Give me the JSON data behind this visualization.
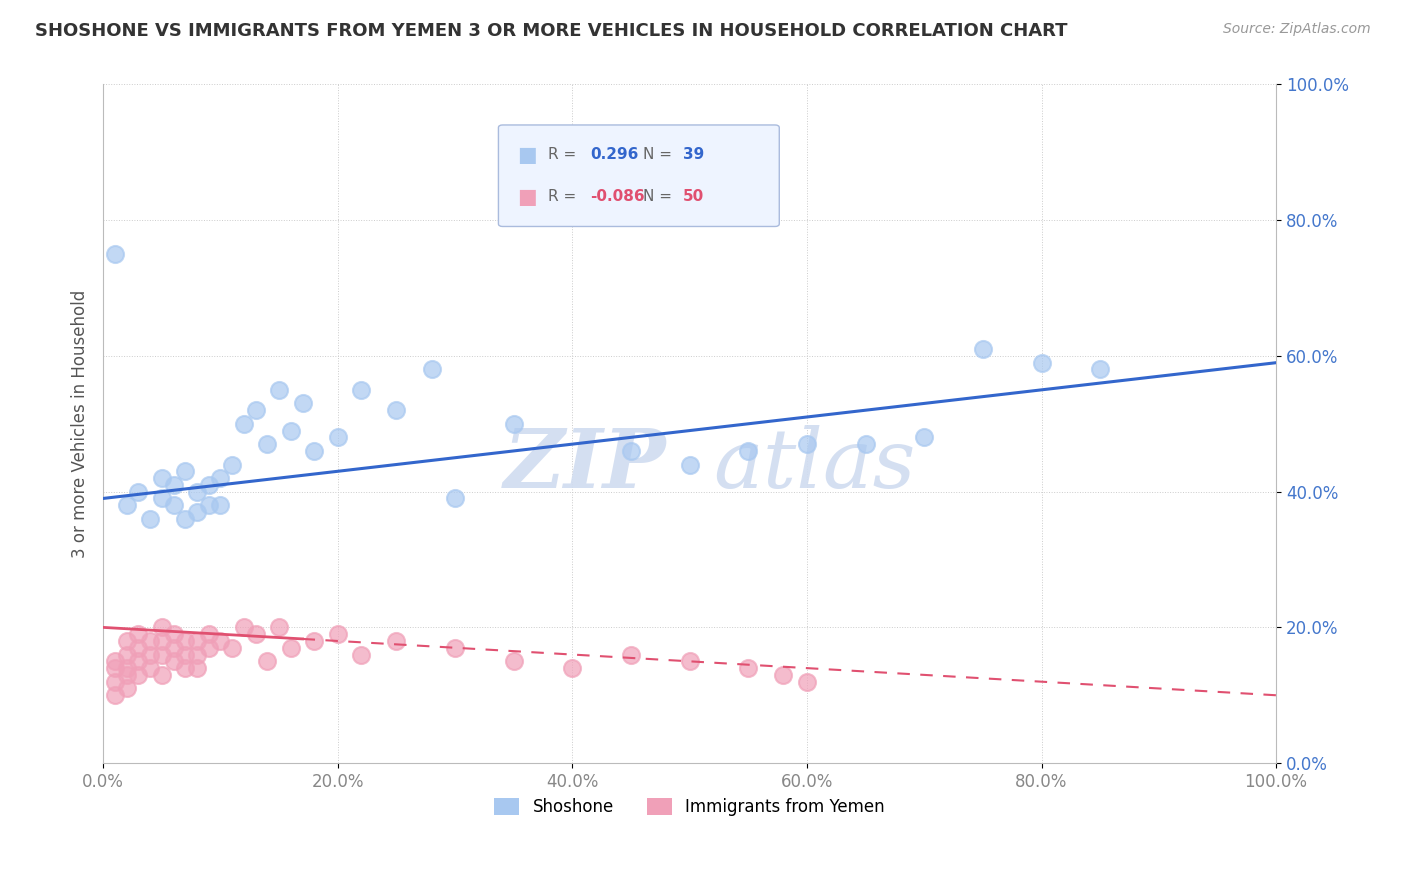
{
  "title": "SHOSHONE VS IMMIGRANTS FROM YEMEN 3 OR MORE VEHICLES IN HOUSEHOLD CORRELATION CHART",
  "source": "Source: ZipAtlas.com",
  "ylabel": "3 or more Vehicles in Household",
  "xlim": [
    0,
    100
  ],
  "ylim": [
    0,
    100
  ],
  "xticks": [
    0,
    20,
    40,
    60,
    80,
    100
  ],
  "yticks": [
    0,
    20,
    40,
    60,
    80,
    100
  ],
  "xtick_labels": [
    "0.0%",
    "20.0%",
    "40.0%",
    "60.0%",
    "80.0%",
    "100.0%"
  ],
  "ytick_labels": [
    "0.0%",
    "20.0%",
    "40.0%",
    "60.0%",
    "80.0%",
    "100.0%"
  ],
  "blue_R": "0.296",
  "blue_N": "39",
  "pink_R": "-0.086",
  "pink_N": "50",
  "blue_color": "#A8C8F0",
  "pink_color": "#F0A0B8",
  "blue_line_color": "#3366CC",
  "pink_line_color": "#E05070",
  "watermark_zip": "ZIP",
  "watermark_atlas": "atlas",
  "legend_blue_label": "Shoshone",
  "legend_pink_label": "Immigrants from Yemen",
  "blue_scatter_x": [
    1,
    2,
    3,
    4,
    5,
    5,
    6,
    6,
    7,
    7,
    8,
    8,
    9,
    9,
    10,
    10,
    11,
    12,
    13,
    14,
    15,
    16,
    17,
    18,
    20,
    22,
    25,
    28,
    30,
    35,
    45,
    50,
    55,
    60,
    65,
    70,
    75,
    80,
    85
  ],
  "blue_scatter_y": [
    75,
    38,
    40,
    36,
    39,
    42,
    38,
    41,
    36,
    43,
    37,
    40,
    38,
    41,
    38,
    42,
    44,
    50,
    52,
    47,
    55,
    49,
    53,
    46,
    48,
    55,
    52,
    58,
    39,
    50,
    46,
    44,
    46,
    47,
    47,
    48,
    61,
    59,
    58
  ],
  "pink_scatter_x": [
    1,
    1,
    1,
    1,
    2,
    2,
    2,
    2,
    2,
    3,
    3,
    3,
    3,
    4,
    4,
    4,
    5,
    5,
    5,
    5,
    6,
    6,
    6,
    7,
    7,
    7,
    8,
    8,
    8,
    9,
    9,
    10,
    11,
    12,
    13,
    14,
    15,
    16,
    18,
    20,
    22,
    25,
    30,
    35,
    40,
    45,
    50,
    55,
    58,
    60
  ],
  "pink_scatter_y": [
    15,
    14,
    12,
    10,
    18,
    16,
    14,
    13,
    11,
    19,
    17,
    15,
    13,
    18,
    16,
    14,
    20,
    18,
    16,
    13,
    19,
    17,
    15,
    18,
    16,
    14,
    18,
    16,
    14,
    19,
    17,
    18,
    17,
    20,
    19,
    15,
    20,
    17,
    18,
    19,
    16,
    18,
    17,
    15,
    14,
    16,
    15,
    14,
    13,
    12
  ],
  "blue_line_x0": 0,
  "blue_line_y0": 39,
  "blue_line_x1": 100,
  "blue_line_y1": 59,
  "pink_line_x0": 0,
  "pink_line_y0": 20,
  "pink_line_x1": 100,
  "pink_line_y1": 10,
  "pink_solid_end_x": 17,
  "grid_color": "#CCCCCC",
  "grid_style": ":",
  "bg_color": "#FFFFFF",
  "tick_color_blue": "#4477CC",
  "tick_color_default": "#888888"
}
